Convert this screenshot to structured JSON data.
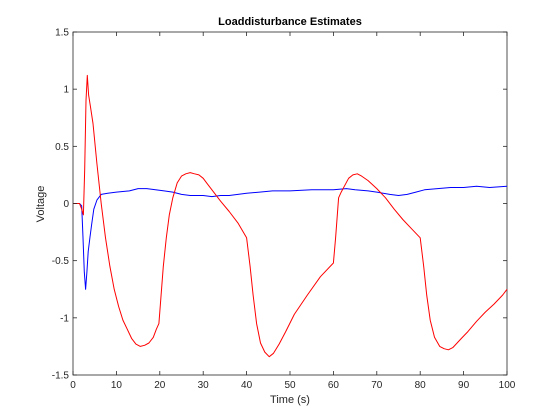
{
  "chart_data": {
    "type": "line",
    "title": "Loaddisturbance Estimates",
    "xlabel": "Time (s)",
    "ylabel": "Voltage",
    "xlim": [
      0,
      100
    ],
    "ylim": [
      -1.5,
      1.5
    ],
    "x_ticks": [
      0,
      10,
      20,
      30,
      40,
      50,
      60,
      70,
      80,
      90,
      100
    ],
    "x_tick_labels": [
      "0",
      "10",
      "20",
      "30",
      "40",
      "50",
      "60",
      "70",
      "80",
      "90",
      "100"
    ],
    "y_ticks": [
      1.5,
      1,
      0.5,
      0,
      -0.5,
      -1,
      -1.5
    ],
    "y_tick_labels": [
      "1.5",
      "1",
      "0.5",
      "0",
      "-0.5",
      "-1",
      "-1.5"
    ],
    "grid": false,
    "legend": "none",
    "series": [
      {
        "color": "#0000ff",
        "points": [
          [
            0,
            0
          ],
          [
            1.5,
            0
          ],
          [
            2,
            -0.02
          ],
          [
            2.3,
            -0.3
          ],
          [
            2.6,
            -0.6
          ],
          [
            2.9,
            -0.75
          ],
          [
            3.2,
            -0.6
          ],
          [
            3.5,
            -0.42
          ],
          [
            3.9,
            -0.3
          ],
          [
            4.3,
            -0.18
          ],
          [
            4.8,
            -0.05
          ],
          [
            5.5,
            0.03
          ],
          [
            6.5,
            0.08
          ],
          [
            8,
            0.09
          ],
          [
            10,
            0.1
          ],
          [
            13,
            0.11
          ],
          [
            15,
            0.13
          ],
          [
            17,
            0.13
          ],
          [
            19,
            0.12
          ],
          [
            21,
            0.11
          ],
          [
            23,
            0.1
          ],
          [
            25,
            0.08
          ],
          [
            27,
            0.07
          ],
          [
            30,
            0.07
          ],
          [
            32,
            0.06
          ],
          [
            34,
            0.07
          ],
          [
            36,
            0.07
          ],
          [
            38,
            0.08
          ],
          [
            40,
            0.09
          ],
          [
            43,
            0.1
          ],
          [
            46,
            0.11
          ],
          [
            50,
            0.11
          ],
          [
            55,
            0.12
          ],
          [
            60,
            0.12
          ],
          [
            63,
            0.13
          ],
          [
            65,
            0.12
          ],
          [
            68,
            0.11
          ],
          [
            70,
            0.1
          ],
          [
            73,
            0.08
          ],
          [
            75,
            0.07
          ],
          [
            77,
            0.08
          ],
          [
            79,
            0.1
          ],
          [
            81,
            0.12
          ],
          [
            84,
            0.13
          ],
          [
            87,
            0.14
          ],
          [
            90,
            0.14
          ],
          [
            93,
            0.15
          ],
          [
            96,
            0.14
          ],
          [
            100,
            0.15
          ]
        ]
      },
      {
        "color": "#ff0000",
        "points": [
          [
            0,
            0
          ],
          [
            1.5,
            0
          ],
          [
            2,
            -0.05
          ],
          [
            2.4,
            -0.1
          ],
          [
            2.7,
            0.3
          ],
          [
            3,
            0.9
          ],
          [
            3.3,
            1.12
          ],
          [
            3.6,
            0.95
          ],
          [
            4,
            0.85
          ],
          [
            4.6,
            0.7
          ],
          [
            5.5,
            0.35
          ],
          [
            6.5,
            0
          ],
          [
            7.5,
            -0.3
          ],
          [
            8.5,
            -0.55
          ],
          [
            9.5,
            -0.75
          ],
          [
            10.5,
            -0.9
          ],
          [
            11.5,
            -1.02
          ],
          [
            12.5,
            -1.1
          ],
          [
            13.5,
            -1.18
          ],
          [
            14.5,
            -1.23
          ],
          [
            15.5,
            -1.25
          ],
          [
            16.5,
            -1.24
          ],
          [
            17.5,
            -1.22
          ],
          [
            18.5,
            -1.17
          ],
          [
            19.2,
            -1.1
          ],
          [
            19.8,
            -1.05
          ],
          [
            20.3,
            -0.8
          ],
          [
            20.8,
            -0.55
          ],
          [
            21.5,
            -0.3
          ],
          [
            22.2,
            -0.1
          ],
          [
            23,
            0.05
          ],
          [
            24,
            0.18
          ],
          [
            25,
            0.24
          ],
          [
            26,
            0.26
          ],
          [
            27,
            0.27
          ],
          [
            28,
            0.26
          ],
          [
            29,
            0.25
          ],
          [
            30,
            0.22
          ],
          [
            31,
            0.17
          ],
          [
            32,
            0.12
          ],
          [
            34,
            0.02
          ],
          [
            36,
            -0.07
          ],
          [
            38,
            -0.17
          ],
          [
            40,
            -0.3
          ],
          [
            40.8,
            -0.55
          ],
          [
            41.5,
            -0.8
          ],
          [
            42.3,
            -1.05
          ],
          [
            43.2,
            -1.22
          ],
          [
            44.2,
            -1.3
          ],
          [
            45.2,
            -1.34
          ],
          [
            46.2,
            -1.31
          ],
          [
            47.5,
            -1.23
          ],
          [
            49,
            -1.12
          ],
          [
            51,
            -0.97
          ],
          [
            54,
            -0.8
          ],
          [
            57,
            -0.64
          ],
          [
            60,
            -0.52
          ],
          [
            60.5,
            -0.3
          ],
          [
            61.2,
            0.05
          ],
          [
            61.8,
            0.1
          ],
          [
            62.5,
            0.15
          ],
          [
            63.5,
            0.22
          ],
          [
            64.5,
            0.25
          ],
          [
            65.5,
            0.26
          ],
          [
            66.5,
            0.24
          ],
          [
            68,
            0.2
          ],
          [
            70,
            0.13
          ],
          [
            72,
            0.05
          ],
          [
            74,
            -0.05
          ],
          [
            76,
            -0.14
          ],
          [
            78,
            -0.22
          ],
          [
            80,
            -0.3
          ],
          [
            80.8,
            -0.55
          ],
          [
            81.5,
            -0.8
          ],
          [
            82.3,
            -1.02
          ],
          [
            83.3,
            -1.17
          ],
          [
            84.5,
            -1.25
          ],
          [
            85.5,
            -1.27
          ],
          [
            86.5,
            -1.28
          ],
          [
            87.5,
            -1.26
          ],
          [
            88.5,
            -1.22
          ],
          [
            89.5,
            -1.18
          ],
          [
            91,
            -1.12
          ],
          [
            93,
            -1.03
          ],
          [
            95,
            -0.95
          ],
          [
            97,
            -0.88
          ],
          [
            99,
            -0.8
          ],
          [
            100,
            -0.75
          ]
        ]
      }
    ]
  }
}
